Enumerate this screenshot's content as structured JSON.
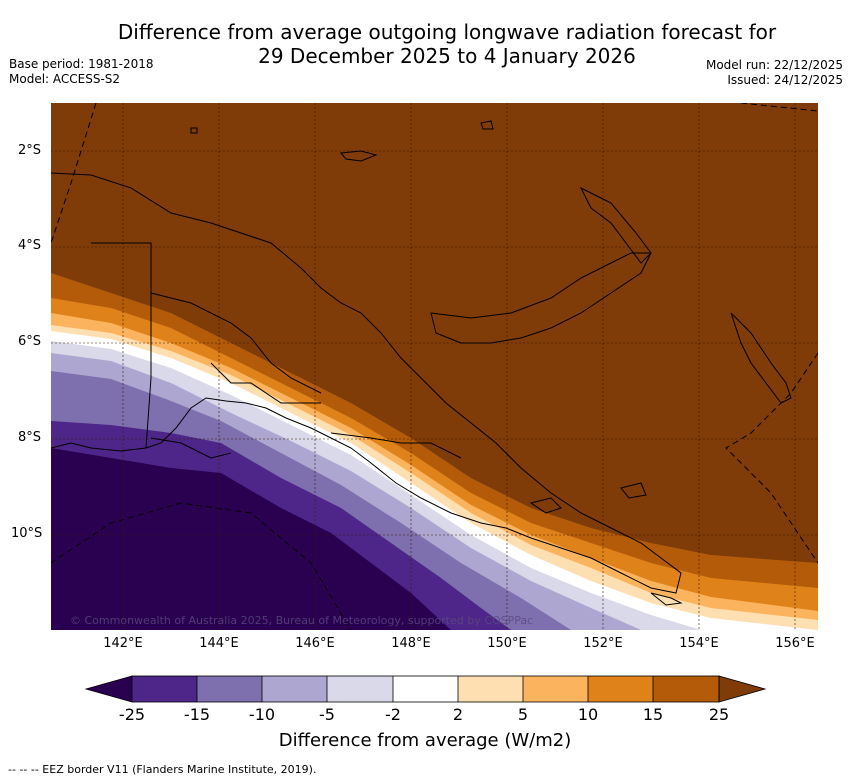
{
  "title_line1": "Difference from average outgoing longwave radiation forecast for",
  "title_line2": "29 December 2025 to 4 January 2026",
  "base_period": "Base period: 1981-2018",
  "model": "Model: ACCESS-S2",
  "model_run": "Model run: 22/12/2025",
  "issued": "Issued: 24/12/2025",
  "lat_labels": [
    "2°S",
    "4°S",
    "6°S",
    "8°S",
    "10°S"
  ],
  "lon_labels": [
    "142°E",
    "144°E",
    "146°E",
    "148°E",
    "150°E",
    "152°E",
    "154°E",
    "156°E"
  ],
  "copyright": "© Commonwealth of Australia 2025, Bureau of Meteorology, supported by COSPPac",
  "colorbar": {
    "title": "Difference from average (W/m2)",
    "ticks": [
      "-25",
      "-15",
      "-10",
      "-5",
      "-2",
      "2",
      "5",
      "10",
      "15",
      "25"
    ],
    "colors": {
      "lt_neg25": "#2a0050",
      "neg25_neg15": "#4e2689",
      "neg15_neg10": "#7e6fae",
      "neg10_neg5": "#ada6d1",
      "neg5_neg2": "#d9d9ea",
      "neg2_2": "#ffffff",
      "p2_5": "#fedfb2",
      "p5_10": "#fcb35d",
      "p10_15": "#e0821a",
      "p15_25": "#b35b08",
      "gt_25": "#7f3b08"
    }
  },
  "footnote": "-- -- -- EEZ border V11 (Flanders Marine Institute, 2019)."
}
